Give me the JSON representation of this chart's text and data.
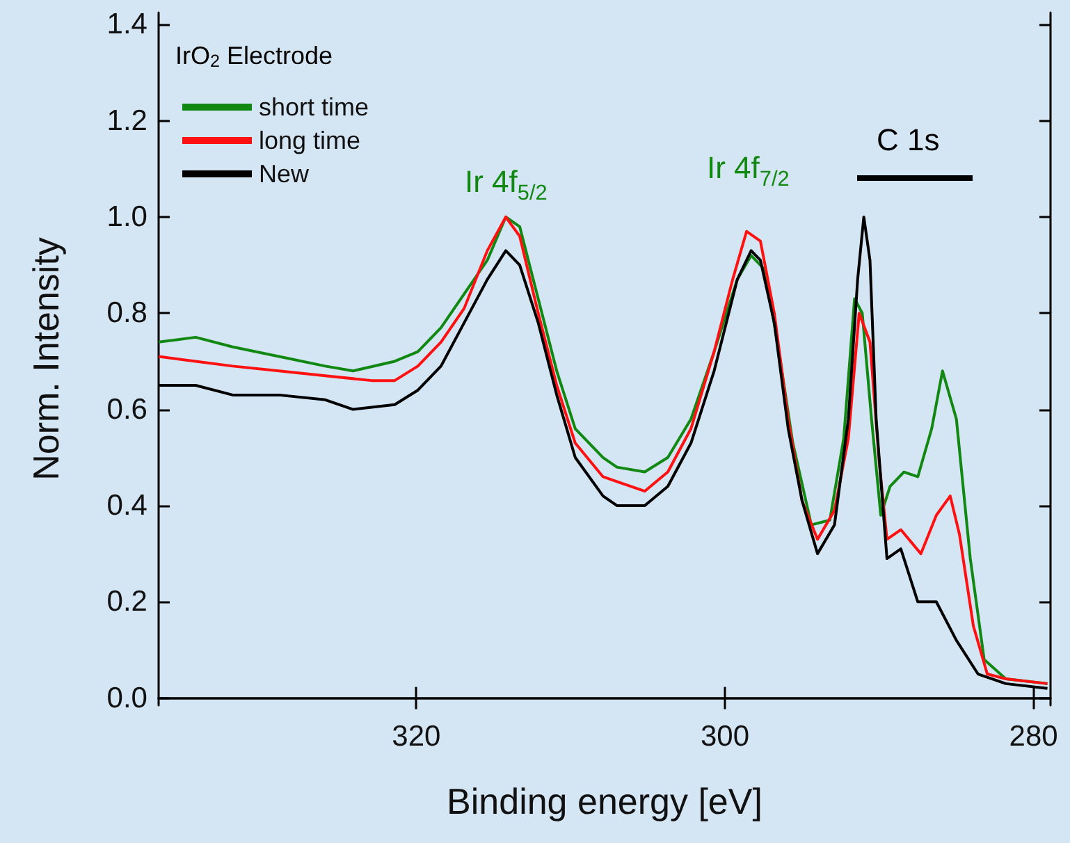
{
  "chart_data": {
    "type": "line",
    "xlabel": "Binding energy [eV]",
    "ylabel": "Norm. Intensity",
    "legend_title": "IrO$_{2}$ Electrode",
    "legend": "top left",
    "grid": false,
    "marker": "none",
    "line_style": "solid",
    "xlim": [
      336.7,
      278.9
    ],
    "xticks": [
      320,
      300,
      280
    ],
    "ylim": [
      -0.015,
      1.425
    ],
    "yticks": [
      {
        "value": 0,
        "label": "0.0"
      },
      {
        "value": 0.2,
        "label": "0.2"
      },
      {
        "value": 0.4,
        "label": "0.4"
      },
      {
        "value": 0.6,
        "label": "0.6"
      },
      {
        "value": 0.8,
        "label": "0.8"
      },
      {
        "value": 1,
        "label": "1.0"
      },
      {
        "value": 1.2,
        "label": "1.2"
      },
      {
        "value": 1.4,
        "label": "1.4"
      }
    ],
    "annotations": [
      "Ir 4f$_{5/2}$",
      "Ir 4f$_{7/2}$",
      "C 1s"
    ],
    "series": [
      {
        "name": "short time",
        "color": "#118811",
        "x": [
          336.7,
          334.3,
          331.9,
          328.9,
          325.9,
          324.1,
          321.4,
          319.9,
          318.4,
          316.9,
          315.4,
          314.2,
          313.3,
          312.1,
          310.9,
          309.7,
          307.9,
          307.0,
          305.2,
          303.7,
          302.2,
          300.7,
          299.2,
          298.3,
          297.4,
          296.5,
          295.6,
          294.4,
          293.2,
          292.3,
          291.6,
          291.1,
          290.5,
          289.9,
          289.3,
          288.4,
          287.5,
          286.6,
          285.9,
          285.0,
          284.1,
          283.2,
          281.8,
          279.1
        ],
        "values": [
          0.74,
          0.75,
          0.73,
          0.71,
          0.69,
          0.68,
          0.7,
          0.72,
          0.77,
          0.84,
          0.91,
          1.0,
          0.98,
          0.83,
          0.68,
          0.56,
          0.5,
          0.48,
          0.47,
          0.5,
          0.58,
          0.72,
          0.87,
          0.92,
          0.89,
          0.72,
          0.53,
          0.36,
          0.37,
          0.54,
          0.83,
          0.8,
          0.58,
          0.38,
          0.44,
          0.47,
          0.46,
          0.56,
          0.68,
          0.58,
          0.29,
          0.08,
          0.04,
          0.03
        ]
      },
      {
        "name": "long time",
        "color": "#ff1111",
        "x": [
          336.7,
          334.3,
          331.9,
          328.9,
          325.9,
          322.9,
          321.4,
          319.9,
          318.4,
          316.9,
          315.4,
          314.2,
          313.3,
          312.1,
          310.9,
          309.7,
          307.9,
          307.0,
          305.2,
          303.7,
          302.2,
          300.7,
          299.5,
          298.6,
          297.7,
          296.8,
          295.9,
          295.0,
          294.0,
          292.9,
          292.0,
          291.3,
          290.6,
          290.0,
          289.5,
          288.6,
          287.3,
          286.3,
          285.4,
          284.8,
          283.9,
          283.0,
          281.8,
          279.1
        ],
        "values": [
          0.71,
          0.7,
          0.69,
          0.68,
          0.67,
          0.66,
          0.66,
          0.69,
          0.74,
          0.81,
          0.93,
          1.0,
          0.96,
          0.8,
          0.65,
          0.53,
          0.46,
          0.45,
          0.43,
          0.47,
          0.56,
          0.72,
          0.87,
          0.97,
          0.95,
          0.8,
          0.58,
          0.41,
          0.33,
          0.39,
          0.54,
          0.8,
          0.74,
          0.49,
          0.33,
          0.35,
          0.3,
          0.38,
          0.42,
          0.34,
          0.15,
          0.05,
          0.04,
          0.03
        ]
      },
      {
        "name": "New",
        "color": "#000000",
        "x": [
          336.7,
          334.3,
          331.9,
          328.9,
          325.9,
          324.1,
          321.4,
          319.9,
          318.4,
          316.9,
          315.4,
          314.2,
          313.3,
          312.1,
          310.9,
          309.7,
          307.9,
          307.0,
          305.2,
          303.7,
          302.2,
          300.7,
          299.2,
          298.3,
          297.7,
          296.8,
          295.9,
          295.0,
          294.0,
          292.9,
          292.0,
          291.4,
          291.0,
          290.6,
          290.2,
          289.5,
          288.6,
          287.5,
          286.3,
          285.0,
          283.6,
          281.8,
          279.1
        ],
        "values": [
          0.65,
          0.65,
          0.63,
          0.63,
          0.62,
          0.6,
          0.61,
          0.64,
          0.69,
          0.78,
          0.87,
          0.93,
          0.9,
          0.78,
          0.63,
          0.5,
          0.42,
          0.4,
          0.4,
          0.44,
          0.53,
          0.68,
          0.87,
          0.93,
          0.91,
          0.78,
          0.56,
          0.41,
          0.3,
          0.36,
          0.58,
          0.87,
          1.0,
          0.91,
          0.58,
          0.29,
          0.31,
          0.2,
          0.2,
          0.12,
          0.05,
          0.03,
          0.02
        ]
      }
    ]
  }
}
